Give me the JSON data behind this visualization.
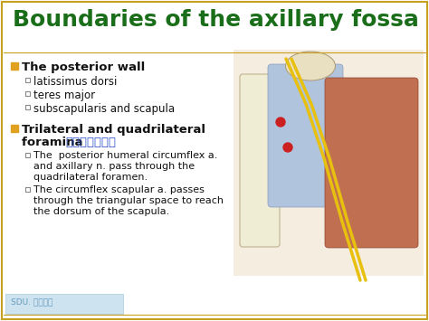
{
  "title": "Boundaries of the axillary fossa",
  "title_color": "#1a6e1a",
  "title_fontsize": 18,
  "bg_color": "#ffffff",
  "border_color": "#c8a020",
  "bullet1_text": "The posterior wall",
  "sub1": [
    "latissimus dorsi",
    "teres major",
    "subscapularis and scapula"
  ],
  "bullet2_line1": "Trilateral and quadrilateral",
  "bullet2_line2": "foramina ",
  "bullet2_chinese": "三边孔和四边孔",
  "sub2_1_line1": "The  posterior humeral circumflex a.",
  "sub2_1_line2": "and axillary n. pass through the",
  "sub2_1_line3": "quadrilateral foramen.",
  "sub2_2_line1": "The circumflex scapular a. passes",
  "sub2_2_line2": "through the triangular space to reach",
  "sub2_2_line3": "the dorsum of the scapula.",
  "footer_text": "SDU. 山东大学",
  "bullet_color": "#e0a020",
  "sub_bullet_color": "#888888",
  "text_color": "#111111",
  "bold_color": "#111111",
  "chinese_color": "#3355cc",
  "footer_bg": "#cde4f0",
  "footer_border": "#aaccdd",
  "image_placeholder_color": "#f0e8d8",
  "image_border_color": "#ccbbaa"
}
